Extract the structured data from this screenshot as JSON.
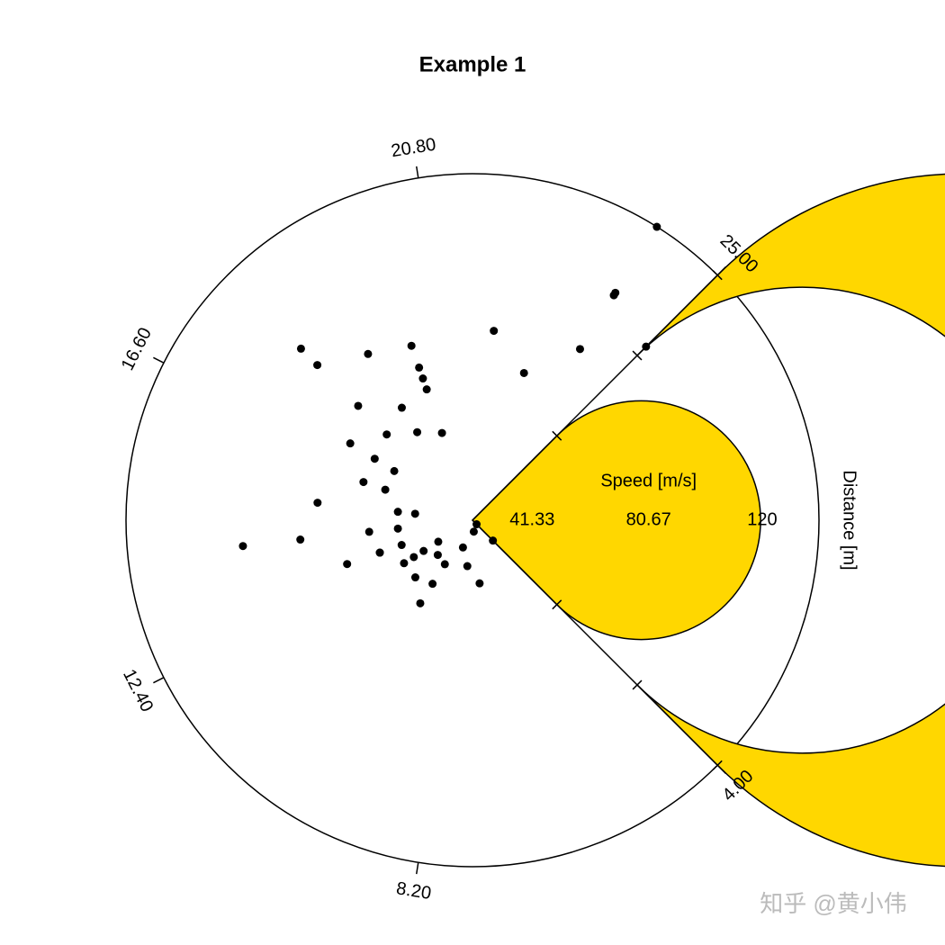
{
  "chart_data": {
    "type": "polar-scatter",
    "title": "Example 1",
    "xlabel": "Distance [m]",
    "ylabel": "Speed [m/s]",
    "xlim": [
      4,
      25
    ],
    "xticks": [
      {
        "value": 4,
        "label": "4.00"
      },
      {
        "value": 8.2,
        "label": "8.20"
      },
      {
        "value": 12.4,
        "label": "12.40"
      },
      {
        "value": 16.6,
        "label": "16.60"
      },
      {
        "value": 20.8,
        "label": "20.80"
      },
      {
        "value": 25,
        "label": "25.00"
      }
    ],
    "ylim": [
      0,
      120
    ],
    "yticks": [
      41.33,
      80.67,
      120
    ],
    "band_color": "#FFD700",
    "point_color": "#000000",
    "x": [
      4,
      4,
      7,
      7,
      8,
      9,
      10,
      10,
      10,
      11,
      11,
      12,
      12,
      12,
      12,
      13,
      13,
      13,
      13,
      14,
      14,
      14,
      14,
      15,
      15,
      15,
      16,
      16,
      17,
      17,
      17,
      18,
      18,
      18,
      18,
      19,
      19,
      19,
      20,
      20,
      20,
      20,
      20,
      22,
      23,
      24,
      24,
      24,
      24,
      25
    ],
    "y": [
      2,
      10,
      4,
      22,
      16,
      10,
      18,
      26,
      34,
      17,
      28,
      14,
      20,
      24,
      28,
      26,
      34,
      34,
      46,
      26,
      36,
      60,
      80,
      20,
      26,
      54,
      32,
      40,
      32,
      40,
      50,
      42,
      56,
      76,
      84,
      36,
      46,
      68,
      32,
      48,
      52,
      56,
      64,
      66,
      54,
      70,
      92,
      93,
      120,
      85
    ],
    "watermark": "知乎 @黄小伟"
  }
}
